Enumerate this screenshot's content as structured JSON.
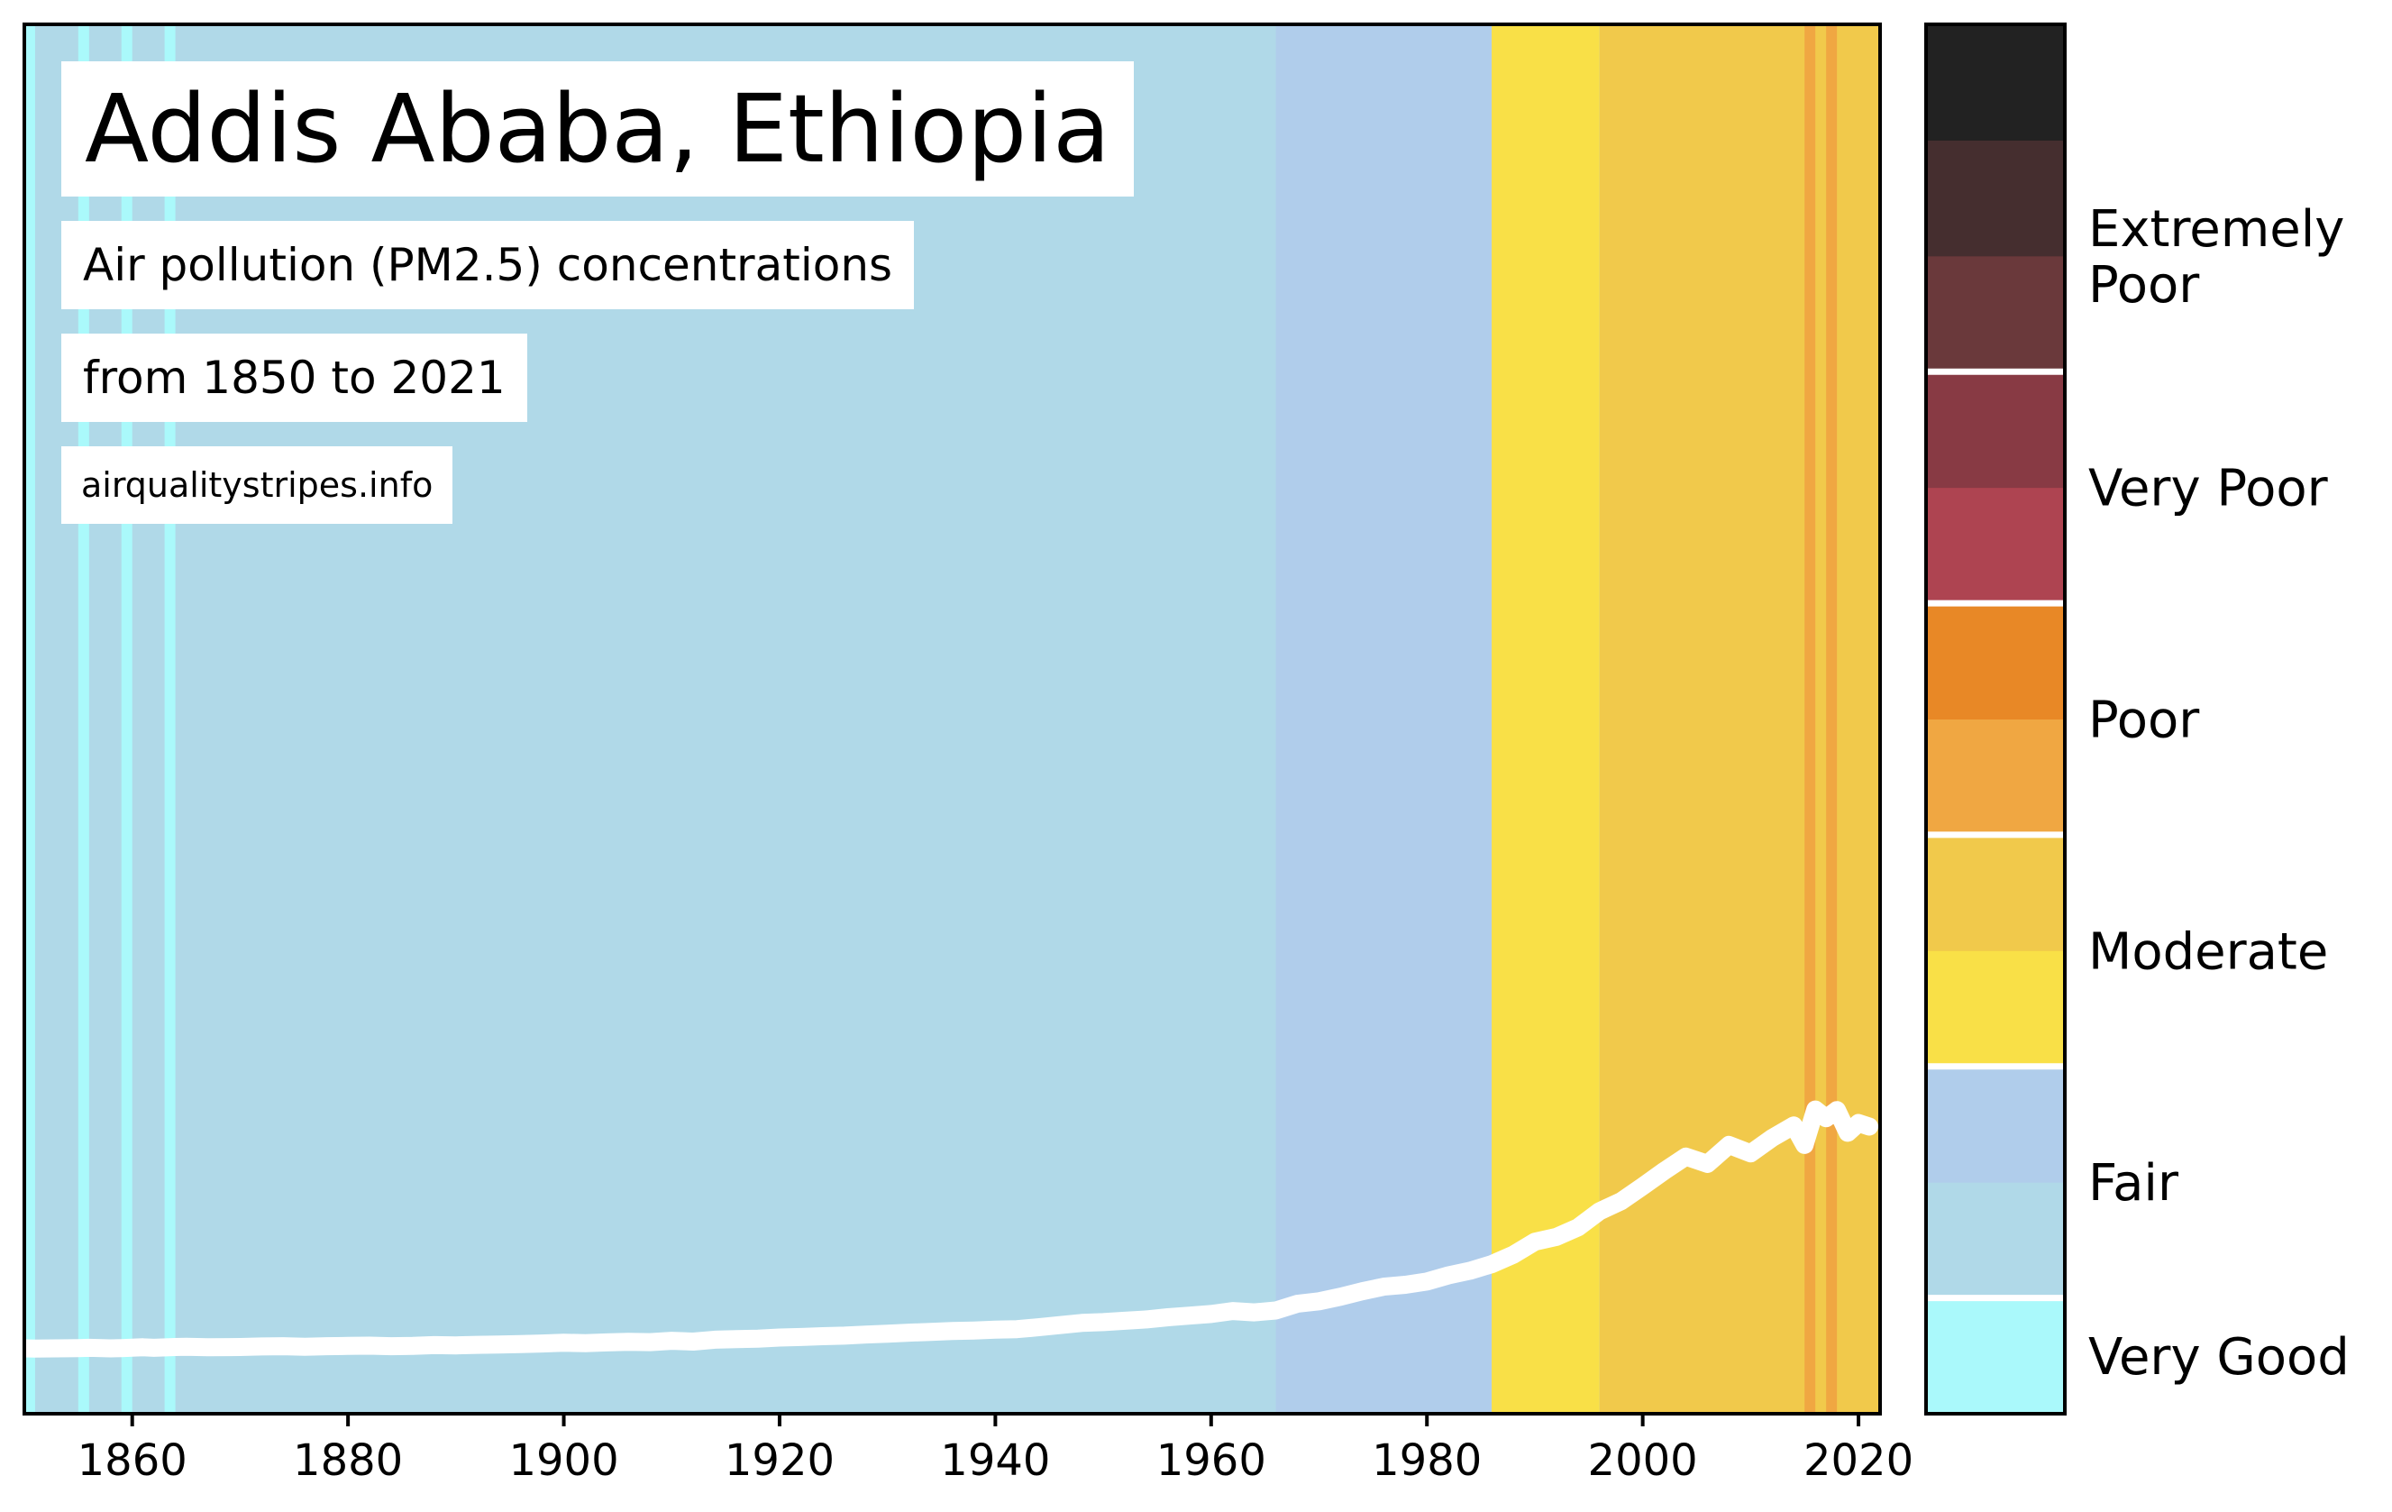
{
  "chart_data": {
    "type": "area",
    "title": "Addis Ababa, Ethiopia",
    "subtitle_lines": [
      "Air pollution (PM2.5) concentrations",
      "from 1850 to 2021"
    ],
    "source": "airqualitystripes.info",
    "xlabel": "",
    "ylabel": "",
    "xlim": [
      1850,
      2022
    ],
    "x_ticks": [
      1860,
      1880,
      1900,
      1920,
      1940,
      1960,
      1980,
      2000,
      2020
    ],
    "grid": false,
    "legend": "colorbar-right",
    "stripes": [
      {
        "start": 1850,
        "end": 2022,
        "color": "#b0d9e8"
      },
      {
        "start": 1850,
        "end": 1851,
        "color": "#aaf9fb"
      },
      {
        "start": 1855,
        "end": 1856,
        "color": "#aaf9fb"
      },
      {
        "start": 1859,
        "end": 1860,
        "color": "#aaf9fb"
      },
      {
        "start": 1863,
        "end": 1864,
        "color": "#aaf9fb"
      },
      {
        "start": 1966,
        "end": 1986,
        "color": "#b0cdeb"
      },
      {
        "start": 1986,
        "end": 1996,
        "color": "#f9e047"
      },
      {
        "start": 1996,
        "end": 2022,
        "color": "#f1c94b"
      },
      {
        "start": 2015,
        "end": 2016,
        "color": "#f0a742"
      },
      {
        "start": 2017,
        "end": 2018,
        "color": "#f0a742"
      }
    ],
    "line_series": {
      "name": "",
      "x": [
        1850,
        1851,
        1853,
        1855,
        1856,
        1858,
        1859,
        1861,
        1862,
        1864,
        1865,
        1867,
        1870,
        1872,
        1874,
        1876,
        1878,
        1880,
        1882,
        1884,
        1886,
        1888,
        1890,
        1892,
        1894,
        1896,
        1898,
        1900,
        1902,
        1904,
        1906,
        1908,
        1910,
        1912,
        1914,
        1916,
        1918,
        1920,
        1922,
        1924,
        1926,
        1928,
        1930,
        1932,
        1934,
        1936,
        1938,
        1940,
        1942,
        1944,
        1946,
        1948,
        1950,
        1952,
        1954,
        1956,
        1958,
        1960,
        1962,
        1964,
        1966,
        1968,
        1970,
        1972,
        1974,
        1976,
        1978,
        1980,
        1982,
        1984,
        1986,
        1988,
        1990,
        1992,
        1994,
        1996,
        1998,
        2000,
        2002,
        2004,
        2006,
        2008,
        2010,
        2012,
        2014,
        2015,
        2016,
        2017,
        2018,
        2019,
        2020,
        2021
      ],
      "values": [
        0.15,
        0.14,
        0.15,
        0.16,
        0.17,
        0.15,
        0.16,
        0.19,
        0.17,
        0.2,
        0.21,
        0.19,
        0.2,
        0.22,
        0.23,
        0.21,
        0.23,
        0.24,
        0.25,
        0.23,
        0.24,
        0.27,
        0.26,
        0.28,
        0.29,
        0.31,
        0.33,
        0.36,
        0.34,
        0.37,
        0.39,
        0.38,
        0.43,
        0.4,
        0.47,
        0.49,
        0.51,
        0.55,
        0.57,
        0.6,
        0.62,
        0.66,
        0.69,
        0.73,
        0.76,
        0.79,
        0.81,
        0.84,
        0.86,
        0.93,
        1.01,
        1.09,
        1.12,
        1.17,
        1.22,
        1.3,
        1.36,
        1.42,
        1.53,
        1.48,
        1.55,
        1.8,
        1.89,
        2.06,
        2.26,
        2.43,
        2.5,
        2.62,
        2.85,
        3.02,
        3.26,
        3.61,
        4.09,
        4.27,
        4.62,
        5.22,
        5.59,
        6.14,
        6.71,
        7.24,
        6.97,
        7.67,
        7.36,
        7.93,
        8.39,
        7.67,
        8.98,
        8.66,
        8.96,
        8.12,
        8.48,
        8.35
      ]
    },
    "colorbar": {
      "segments": [
        {
          "color": "#aaf9fb"
        },
        {
          "color": "#b0d9e8"
        },
        {
          "color": "#b0cdeb"
        },
        {
          "color": "#f9e047"
        },
        {
          "color": "#f1c94b"
        },
        {
          "color": "#f0a742"
        },
        {
          "color": "#e88826"
        },
        {
          "color": "#ae4451"
        },
        {
          "color": "#883a44"
        },
        {
          "color": "#6a393b"
        },
        {
          "color": "#452e2f"
        },
        {
          "color": "#222222"
        }
      ],
      "labels": [
        "Very Good",
        "Fair",
        "Moderate",
        "Poor",
        "Very Poor",
        "Extremely Poor"
      ],
      "label_lines": [
        [
          "Very Good"
        ],
        [
          "Fair"
        ],
        [
          "Moderate"
        ],
        [
          "Poor"
        ],
        [
          "Very Poor"
        ],
        [
          "Extremely",
          "Poor"
        ]
      ]
    }
  }
}
